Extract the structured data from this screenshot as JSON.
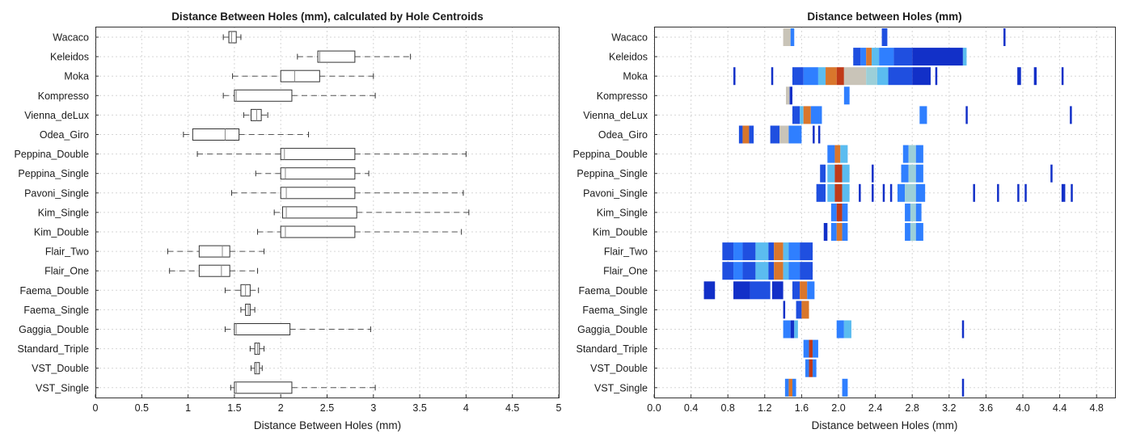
{
  "chart_data": [
    {
      "type": "box",
      "title": "Distance Between Holes (mm), calculated by Hole Centroids",
      "xlabel": "Distance Between Holes (mm)",
      "ylabel": "",
      "xlim": [
        0,
        5
      ],
      "xticks": [
        0,
        0.5,
        1,
        1.5,
        2,
        2.5,
        3,
        3.5,
        4,
        4.5,
        5
      ],
      "xtick_labels": [
        "0",
        "0.5",
        "1",
        "1.5",
        "2",
        "2.5",
        "3",
        "3.5",
        "4",
        "4.5",
        "5"
      ],
      "grid": true,
      "categories": [
        "Wacaco",
        "Keleidos",
        "Moka",
        "Kompresso",
        "Vienna_deLux",
        "Odea_Giro",
        "Peppina_Double",
        "Peppina_Single",
        "Pavoni_Single",
        "Kim_Single",
        "Kim_Double",
        "Flair_Two",
        "Flair_One",
        "Faema_Double",
        "Faema_Single",
        "Gaggia_Double",
        "Standard_Triple",
        "VST_Double",
        "VST_Single"
      ],
      "boxes": [
        {
          "min": 1.38,
          "q1": 1.44,
          "median": 1.47,
          "q3": 1.52,
          "max": 1.57
        },
        {
          "min": 2.18,
          "q1": 2.4,
          "median": 2.42,
          "q3": 2.8,
          "max": 3.4
        },
        {
          "min": 1.48,
          "q1": 2.0,
          "median": 2.15,
          "q3": 2.42,
          "max": 3.0
        },
        {
          "min": 1.38,
          "q1": 1.5,
          "median": 1.52,
          "q3": 2.12,
          "max": 3.02
        },
        {
          "min": 1.6,
          "q1": 1.68,
          "median": 1.74,
          "q3": 1.79,
          "max": 1.86
        },
        {
          "min": 0.95,
          "q1": 1.05,
          "median": 1.4,
          "q3": 1.55,
          "max": 2.3
        },
        {
          "min": 1.1,
          "q1": 2.0,
          "median": 2.04,
          "q3": 2.8,
          "max": 4.0
        },
        {
          "min": 1.73,
          "q1": 2.0,
          "median": 2.05,
          "q3": 2.8,
          "max": 2.95
        },
        {
          "min": 1.47,
          "q1": 2.0,
          "median": 2.06,
          "q3": 2.8,
          "max": 3.97
        },
        {
          "min": 1.93,
          "q1": 2.02,
          "median": 2.06,
          "q3": 2.82,
          "max": 4.03
        },
        {
          "min": 1.75,
          "q1": 2.0,
          "median": 2.05,
          "q3": 2.8,
          "max": 3.95
        },
        {
          "min": 0.78,
          "q1": 1.12,
          "median": 1.37,
          "q3": 1.45,
          "max": 1.82
        },
        {
          "min": 0.8,
          "q1": 1.12,
          "median": 1.36,
          "q3": 1.45,
          "max": 1.75
        },
        {
          "min": 1.4,
          "q1": 1.57,
          "median": 1.62,
          "q3": 1.67,
          "max": 1.76
        },
        {
          "min": 1.57,
          "q1": 1.62,
          "median": 1.65,
          "q3": 1.67,
          "max": 1.72
        },
        {
          "min": 1.4,
          "q1": 1.5,
          "median": 1.52,
          "q3": 2.1,
          "max": 2.97
        },
        {
          "min": 1.67,
          "q1": 1.72,
          "median": 1.75,
          "q3": 1.77,
          "max": 1.82
        },
        {
          "min": 1.68,
          "q1": 1.72,
          "median": 1.74,
          "q3": 1.77,
          "max": 1.8
        },
        {
          "min": 1.46,
          "q1": 1.5,
          "median": 1.52,
          "q3": 2.12,
          "max": 3.02
        }
      ]
    },
    {
      "type": "heatmap",
      "title": "Distance between Holes (mm)",
      "xlabel": "Distance between Holes (mm)",
      "ylabel": "",
      "xlim": [
        0,
        5
      ],
      "xticks": [
        0,
        0.4,
        0.8,
        1.2,
        1.6,
        2.0,
        2.4,
        2.8,
        3.2,
        3.6,
        4.0,
        4.4,
        4.8
      ],
      "xtick_labels": [
        "0.0",
        "0.4",
        "0.8",
        "1.2",
        "1.6",
        "2.0",
        "2.4",
        "2.8",
        "3.2",
        "3.6",
        "4.0",
        "4.4",
        "4.8"
      ],
      "grid": true,
      "color_scale": [
        "#1230c8",
        "#1f4fe0",
        "#2f7fff",
        "#5bbcf0",
        "#9ccfd8",
        "#c9c4b8",
        "#d9762c",
        "#c03a18"
      ],
      "categories": [
        "Wacaco",
        "Keleidos",
        "Moka",
        "Kompresso",
        "Vienna_deLux",
        "Odea_Giro",
        "Peppina_Double",
        "Peppina_Single",
        "Pavoni_Single",
        "Kim_Single",
        "Kim_Double",
        "Flair_Two",
        "Flair_One",
        "Faema_Double",
        "Faema_Single",
        "Gaggia_Double",
        "Standard_Triple",
        "VST_Double",
        "VST_Single"
      ],
      "rows": [
        [
          [
            1.4,
            1.48,
            5
          ],
          [
            1.48,
            1.52,
            2
          ],
          [
            2.47,
            2.53,
            1
          ],
          [
            3.79,
            3.81,
            0
          ]
        ],
        [
          [
            2.16,
            2.24,
            1
          ],
          [
            2.24,
            2.3,
            2
          ],
          [
            2.3,
            2.36,
            6
          ],
          [
            2.36,
            2.44,
            3
          ],
          [
            2.44,
            2.6,
            2
          ],
          [
            2.6,
            2.8,
            1
          ],
          [
            2.8,
            3.35,
            0
          ],
          [
            3.35,
            3.39,
            3
          ]
        ],
        [
          [
            0.86,
            0.88,
            0
          ],
          [
            1.27,
            1.29,
            0
          ],
          [
            1.5,
            1.62,
            1
          ],
          [
            1.62,
            1.78,
            2
          ],
          [
            1.78,
            1.86,
            3
          ],
          [
            1.86,
            1.98,
            6
          ],
          [
            1.98,
            2.06,
            7
          ],
          [
            2.06,
            2.3,
            5
          ],
          [
            2.3,
            2.42,
            4
          ],
          [
            2.42,
            2.54,
            3
          ],
          [
            2.54,
            2.8,
            1
          ],
          [
            2.8,
            3.0,
            0
          ],
          [
            3.05,
            3.07,
            0
          ],
          [
            3.94,
            3.98,
            0
          ],
          [
            4.12,
            4.15,
            0
          ],
          [
            4.42,
            4.44,
            0
          ]
        ],
        [
          [
            1.43,
            1.47,
            5
          ],
          [
            1.47,
            1.5,
            0
          ],
          [
            2.06,
            2.12,
            2
          ]
        ],
        [
          [
            1.5,
            1.58,
            1
          ],
          [
            1.58,
            1.62,
            3
          ],
          [
            1.62,
            1.7,
            6
          ],
          [
            1.7,
            1.82,
            2
          ],
          [
            2.88,
            2.96,
            2
          ],
          [
            3.38,
            3.4,
            0
          ],
          [
            4.51,
            4.53,
            0
          ]
        ],
        [
          [
            0.92,
            0.96,
            1
          ],
          [
            0.96,
            1.03,
            6
          ],
          [
            1.03,
            1.08,
            1
          ],
          [
            1.26,
            1.36,
            1
          ],
          [
            1.36,
            1.46,
            5
          ],
          [
            1.46,
            1.6,
            2
          ],
          [
            1.72,
            1.74,
            0
          ],
          [
            1.78,
            1.8,
            0
          ]
        ],
        [
          [
            1.88,
            1.96,
            2
          ],
          [
            1.96,
            2.02,
            6
          ],
          [
            2.02,
            2.1,
            3
          ],
          [
            2.7,
            2.76,
            2
          ],
          [
            2.76,
            2.84,
            4
          ],
          [
            2.84,
            2.92,
            2
          ]
        ],
        [
          [
            1.8,
            1.86,
            1
          ],
          [
            1.88,
            1.96,
            3
          ],
          [
            1.96,
            2.04,
            7
          ],
          [
            2.04,
            2.12,
            3
          ],
          [
            2.36,
            2.38,
            0
          ],
          [
            2.68,
            2.76,
            2
          ],
          [
            2.76,
            2.84,
            4
          ],
          [
            2.84,
            2.92,
            2
          ],
          [
            4.3,
            4.32,
            0
          ]
        ],
        [
          [
            1.76,
            1.86,
            1
          ],
          [
            1.88,
            1.96,
            3
          ],
          [
            1.96,
            2.04,
            7
          ],
          [
            2.04,
            2.12,
            3
          ],
          [
            2.22,
            2.24,
            0
          ],
          [
            2.36,
            2.38,
            0
          ],
          [
            2.48,
            2.5,
            0
          ],
          [
            2.56,
            2.58,
            0
          ],
          [
            2.64,
            2.72,
            2
          ],
          [
            2.72,
            2.84,
            4
          ],
          [
            2.84,
            2.94,
            2
          ],
          [
            3.46,
            3.48,
            0
          ],
          [
            3.72,
            3.74,
            0
          ],
          [
            3.94,
            3.96,
            0
          ],
          [
            4.02,
            4.04,
            0
          ],
          [
            4.42,
            4.46,
            0
          ],
          [
            4.52,
            4.54,
            0
          ]
        ],
        [
          [
            1.92,
            1.98,
            2
          ],
          [
            1.98,
            2.04,
            7
          ],
          [
            2.04,
            2.1,
            2
          ],
          [
            2.72,
            2.78,
            2
          ],
          [
            2.78,
            2.84,
            4
          ],
          [
            2.84,
            2.9,
            2
          ]
        ],
        [
          [
            1.84,
            1.88,
            0
          ],
          [
            1.92,
            1.98,
            2
          ],
          [
            1.98,
            2.04,
            6
          ],
          [
            2.04,
            2.1,
            2
          ],
          [
            2.72,
            2.78,
            2
          ],
          [
            2.78,
            2.84,
            4
          ],
          [
            2.84,
            2.92,
            2
          ]
        ],
        [
          [
            0.74,
            0.86,
            1
          ],
          [
            0.86,
            0.96,
            2
          ],
          [
            0.96,
            1.1,
            1
          ],
          [
            1.1,
            1.24,
            3
          ],
          [
            1.24,
            1.3,
            1
          ],
          [
            1.3,
            1.4,
            6
          ],
          [
            1.4,
            1.46,
            3
          ],
          [
            1.46,
            1.58,
            2
          ],
          [
            1.58,
            1.72,
            1
          ]
        ],
        [
          [
            0.74,
            0.86,
            1
          ],
          [
            0.86,
            0.96,
            2
          ],
          [
            0.96,
            1.1,
            1
          ],
          [
            1.1,
            1.24,
            3
          ],
          [
            1.24,
            1.3,
            1
          ],
          [
            1.3,
            1.4,
            6
          ],
          [
            1.4,
            1.46,
            3
          ],
          [
            1.46,
            1.58,
            2
          ],
          [
            1.58,
            1.72,
            1
          ]
        ],
        [
          [
            0.54,
            0.66,
            0
          ],
          [
            0.86,
            1.04,
            0
          ],
          [
            1.04,
            1.26,
            1
          ],
          [
            1.28,
            1.4,
            0
          ],
          [
            1.5,
            1.58,
            1
          ],
          [
            1.58,
            1.66,
            6
          ],
          [
            1.66,
            1.74,
            2
          ]
        ],
        [
          [
            1.4,
            1.42,
            0
          ],
          [
            1.54,
            1.6,
            1
          ],
          [
            1.6,
            1.68,
            6
          ]
        ],
        [
          [
            1.4,
            1.48,
            2
          ],
          [
            1.48,
            1.52,
            0
          ],
          [
            1.52,
            1.56,
            3
          ],
          [
            1.98,
            2.06,
            2
          ],
          [
            2.06,
            2.14,
            3
          ],
          [
            3.34,
            3.36,
            0
          ]
        ],
        [
          [
            1.62,
            1.68,
            2
          ],
          [
            1.68,
            1.72,
            7
          ],
          [
            1.72,
            1.78,
            2
          ]
        ],
        [
          [
            1.64,
            1.68,
            2
          ],
          [
            1.68,
            1.72,
            7
          ],
          [
            1.72,
            1.76,
            2
          ]
        ],
        [
          [
            1.42,
            1.46,
            2
          ],
          [
            1.46,
            1.5,
            6
          ],
          [
            1.5,
            1.54,
            2
          ],
          [
            2.04,
            2.1,
            2
          ],
          [
            3.34,
            3.36,
            0
          ]
        ]
      ]
    }
  ]
}
